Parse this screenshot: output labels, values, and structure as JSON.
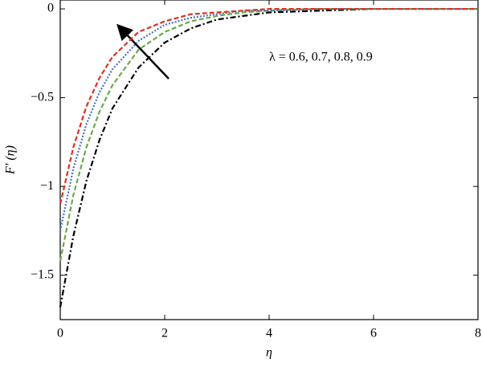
{
  "chart_data": {
    "type": "line",
    "x_label": "η",
    "y_label": "F′ (η)",
    "annotation": "λ = 0.6, 0.7, 0.8, 0.9",
    "x": [
      0,
      0.25,
      0.5,
      0.75,
      1,
      1.5,
      2,
      2.5,
      3,
      3.5,
      4,
      5,
      6,
      8
    ],
    "series": [
      {
        "color": "#000000",
        "dash": "7 3 2 3",
        "values": [
          -1.68,
          -1.28,
          -0.97,
          -0.74,
          -0.56,
          -0.33,
          -0.19,
          -0.11,
          -0.06,
          -0.04,
          -0.02,
          -0.01,
          0,
          0
        ]
      },
      {
        "color": "#6aa84f",
        "dash": "6 3",
        "values": [
          -1.42,
          -1.05,
          -0.78,
          -0.58,
          -0.43,
          -0.23,
          -0.13,
          -0.07,
          -0.04,
          -0.02,
          -0.01,
          0,
          0,
          0
        ]
      },
      {
        "color": "#4a6fbf",
        "dash": "2 2",
        "values": [
          -1.25,
          -0.9,
          -0.65,
          -0.47,
          -0.34,
          -0.18,
          -0.09,
          -0.05,
          -0.03,
          -0.01,
          -0.01,
          0,
          0,
          0
        ]
      },
      {
        "color": "#e03020",
        "dash": "6 3",
        "values": [
          -1.1,
          -0.78,
          -0.55,
          -0.39,
          -0.27,
          -0.13,
          -0.07,
          -0.03,
          -0.02,
          -0.01,
          0,
          0,
          0,
          0
        ]
      }
    ],
    "xlim": [
      0,
      8
    ],
    "xticks": [
      0,
      2,
      4,
      6,
      8
    ],
    "ylim": [
      -1.75,
      0.05
    ],
    "yticks": [
      0,
      {
        "value": -0.5,
        "label": "−0.5"
      },
      {
        "value": -1,
        "label": "−1"
      },
      {
        "value": -1.5,
        "label": "−1.5"
      }
    ]
  }
}
